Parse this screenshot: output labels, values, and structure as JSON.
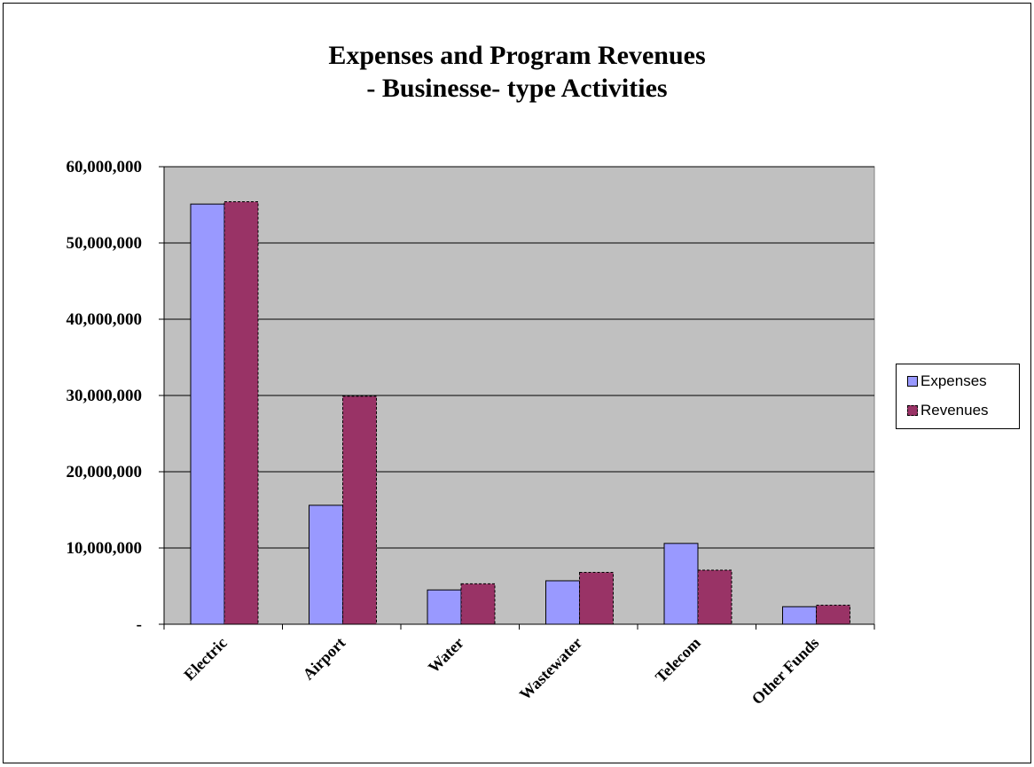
{
  "chart_data": {
    "type": "bar",
    "title": [
      "Expenses and Program Revenues",
      "- Businesse- type Activities"
    ],
    "categories": [
      "Electric",
      "Airport",
      "Water",
      "Wastewater",
      "Telecom",
      "Other Funds"
    ],
    "series": [
      {
        "name": "Expenses",
        "color": "#9999ff",
        "values": [
          55100000,
          15600000,
          4500000,
          5700000,
          10600000,
          2300000
        ]
      },
      {
        "name": "Revenues",
        "color": "#993366",
        "values": [
          55400000,
          29900000,
          5300000,
          6800000,
          7100000,
          2500000
        ]
      }
    ],
    "yticks": [
      {
        "value": 0,
        "label": "-"
      },
      {
        "value": 10000000,
        "label": "10,000,000"
      },
      {
        "value": 20000000,
        "label": "20,000,000"
      },
      {
        "value": 30000000,
        "label": "30,000,000"
      },
      {
        "value": 40000000,
        "label": "40,000,000"
      },
      {
        "value": 50000000,
        "label": "50,000,000"
      },
      {
        "value": 60000000,
        "label": "60,000,000"
      }
    ],
    "ylim": [
      0,
      60000000
    ],
    "grid": true,
    "plot_background": "#c0c0c0",
    "legend_position": "right"
  }
}
